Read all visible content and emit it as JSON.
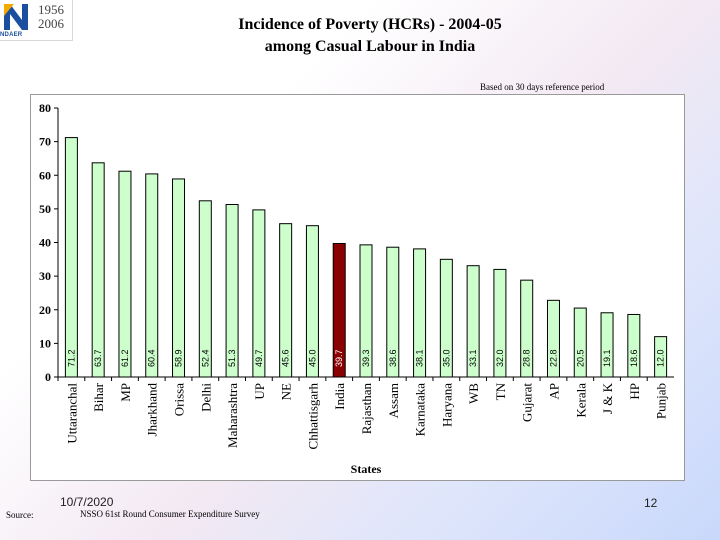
{
  "logo": {
    "word": "NDAER",
    "year_top": "1956",
    "year_bottom": "2006"
  },
  "title_line1": "Incidence of Poverty (HCRs) - 2004-05",
  "title_line2": "among Casual Labour in India",
  "note": "Based on 30 days reference period",
  "footer": {
    "source_label": "Source:",
    "source_text": "NSSO 61st Round Consumer Expenditure Survey",
    "date": "10/7/2020",
    "page": "12"
  },
  "colors": {
    "bar": "#ccffcc",
    "bar_highlight": "#8b0000",
    "bar_stroke": "#000000"
  },
  "chart_data": {
    "type": "bar",
    "categories": [
      "Uttaranchal",
      "Bihar",
      "MP",
      "Jharkhand",
      "Orissa",
      "Delhi",
      "Maharashtra",
      "UP",
      "NE",
      "Chhattisgarh",
      "India",
      "Rajasthan",
      "Assam",
      "Karnataka",
      "Haryana",
      "WB",
      "TN",
      "Gujarat",
      "AP",
      "Kerala",
      "J & K",
      "HP",
      "Punjab"
    ],
    "values": [
      71.2,
      63.7,
      61.2,
      60.4,
      58.9,
      52.4,
      51.3,
      49.7,
      45.6,
      45.0,
      39.7,
      39.3,
      38.6,
      38.1,
      35.0,
      33.1,
      32.0,
      28.8,
      22.8,
      20.5,
      19.1,
      18.6,
      12.0
    ],
    "value_labels": [
      "71.2",
      "63.7",
      "61.2",
      "60.4",
      "58.9",
      "52.4",
      "51.3",
      "49.7",
      "45.6",
      "45.0",
      "39.7",
      "39.3",
      "38.6",
      "38.1",
      "35.0",
      "33.1",
      "32.0",
      "28.8",
      "22.8",
      "20.5",
      "19.1",
      "18.6",
      "12.0"
    ],
    "highlight": "India",
    "xlabel": "States",
    "ylabel": "",
    "ylim": [
      0,
      80
    ],
    "yticks": [
      0,
      10,
      20,
      30,
      40,
      50,
      60,
      70,
      80
    ],
    "grid": false,
    "legend": "none"
  }
}
